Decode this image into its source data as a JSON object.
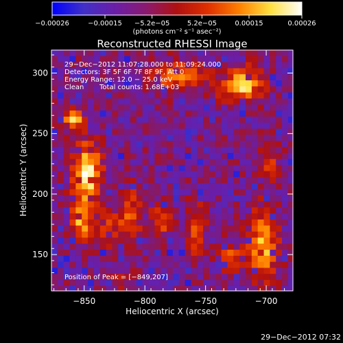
{
  "chart_data": {
    "type": "heatmap",
    "title": "Reconstructed RHESSI Image",
    "xlabel": "Heliocentric X (arcsec)",
    "ylabel": "Heliocentric Y (arcsec)",
    "xlim": [
      -877,
      -678
    ],
    "ylim": [
      120,
      319
    ],
    "x_ticks": [
      -850,
      -800,
      -750,
      -700
    ],
    "x_tick_labels": [
      "−850",
      "−800",
      "−750",
      "−700"
    ],
    "y_ticks": [
      150,
      200,
      250,
      300
    ],
    "y_tick_labels": [
      "150",
      "200",
      "250",
      "300"
    ],
    "colorbar": {
      "range": [
        -0.00026,
        0.00026
      ],
      "ticks": [
        -0.00026,
        -0.00015,
        -5.2e-05,
        5.2e-05,
        0.00015,
        0.00026
      ],
      "tick_labels": [
        "−0.00026",
        "−0.00015",
        "−5.2e−05",
        "5.2e−05",
        "0.00015",
        "0.00026"
      ],
      "units_label": "(photons cm⁻² s⁻¹ asec⁻²)",
      "colors": [
        "#0000ff",
        "#4030c8",
        "#6a1ea8",
        "#8a1a70",
        "#b01010",
        "#e03000",
        "#ff8000",
        "#ffe040",
        "#ffffff"
      ]
    },
    "peak_position": [
      -849,
      207
    ],
    "blobs": [
      {
        "x": -850,
        "y": 220,
        "sx": 8,
        "sy": 18,
        "a": 0.95
      },
      {
        "x": -855,
        "y": 180,
        "sx": 6,
        "sy": 12,
        "a": 0.7
      },
      {
        "x": -862,
        "y": 265,
        "sx": 7,
        "sy": 5,
        "a": 0.75
      },
      {
        "x": -815,
        "y": 185,
        "sx": 6,
        "sy": 14,
        "a": 0.6
      },
      {
        "x": -832,
        "y": 175,
        "sx": 5,
        "sy": 10,
        "a": 0.45
      },
      {
        "x": -790,
        "y": 178,
        "sx": 6,
        "sy": 10,
        "a": 0.5
      },
      {
        "x": -760,
        "y": 172,
        "sx": 5,
        "sy": 16,
        "a": 0.55
      },
      {
        "x": -705,
        "y": 160,
        "sx": 8,
        "sy": 20,
        "a": 0.75
      },
      {
        "x": -730,
        "y": 150,
        "sx": 7,
        "sy": 8,
        "a": 0.55
      },
      {
        "x": -722,
        "y": 292,
        "sx": 12,
        "sy": 10,
        "a": 0.8
      },
      {
        "x": -775,
        "y": 300,
        "sx": 16,
        "sy": 9,
        "a": 0.55
      },
      {
        "x": -820,
        "y": 128,
        "sx": 6,
        "sy": 6,
        "a": 0.45
      },
      {
        "x": -700,
        "y": 230,
        "sx": 6,
        "sy": 10,
        "a": 0.4
      }
    ]
  },
  "annotation": {
    "time_range": "29−Dec−2012 11:07:28.000 to 11:09:24.000",
    "detectors": "Detectors: 3F 5F 6F 7F 8F 9F, Att 0",
    "energy": "Energy Range: 12.0 − 25.0 keV",
    "clean": "Clean",
    "total_counts": "Total counts: 1.68E+03",
    "peak": "Position of Peak = [−849,207]"
  },
  "footer_timestamp": "29−Dec−2012 07:32"
}
